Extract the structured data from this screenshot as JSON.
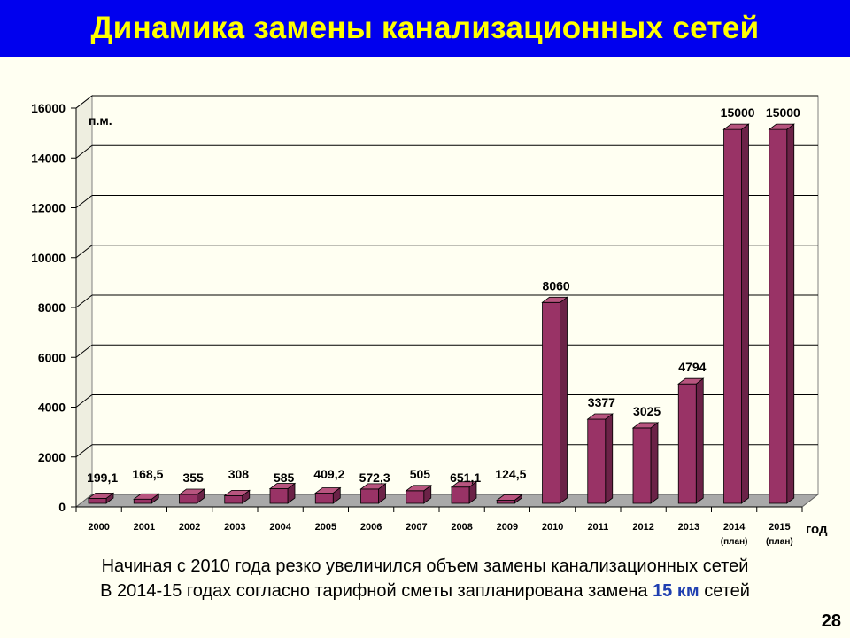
{
  "title": "Динамика замены канализационных сетей",
  "caption": {
    "line1": "Начиная с 2010 года резко увеличился объем замены канализационных сетей",
    "line2_before": "В 2014-15 годах согласно тарифной сметы запланирована замена ",
    "line2_highlight": "15 км",
    "line2_after": " сетей"
  },
  "page_number": "28",
  "colors": {
    "title_bg": "#0000EE",
    "title_text": "#FFFF00",
    "bar_front": "#993366",
    "bar_side": "#6B2247",
    "bar_top": "#B8557F",
    "highlight": "#1F3FB0"
  },
  "chart_data": {
    "type": "bar",
    "title": "",
    "ylabel": "п.м.",
    "xlabel": "год",
    "ylim": [
      0,
      16000
    ],
    "yticks": [
      "0",
      "2000",
      "4000",
      "6000",
      "8000",
      "10000",
      "12000",
      "14000",
      "16000"
    ],
    "categories": [
      "2000",
      "2001",
      "2002",
      "2003",
      "2004",
      "2005",
      "2006",
      "2007",
      "2008",
      "2009",
      "2010",
      "2011",
      "2012",
      "2013",
      "2014",
      "2015"
    ],
    "category_notes": [
      "",
      "",
      "",
      "",
      "",
      "",
      "",
      "",
      "",
      "",
      "",
      "",
      "",
      "",
      "(план)",
      "(план)"
    ],
    "values": [
      199.1,
      168.5,
      355,
      308,
      585,
      409.2,
      572.3,
      505,
      651.1,
      124.5,
      8060,
      3377,
      3025,
      4794,
      15000,
      15000
    ],
    "value_labels": [
      "199,1",
      "168,5",
      "355",
      "308",
      "585",
      "409,2",
      "572,3",
      "505",
      "651,1",
      "124,5",
      "8060",
      "3377",
      "3025",
      "4794",
      "15000",
      "15000"
    ],
    "grid": true,
    "legend": "none"
  }
}
